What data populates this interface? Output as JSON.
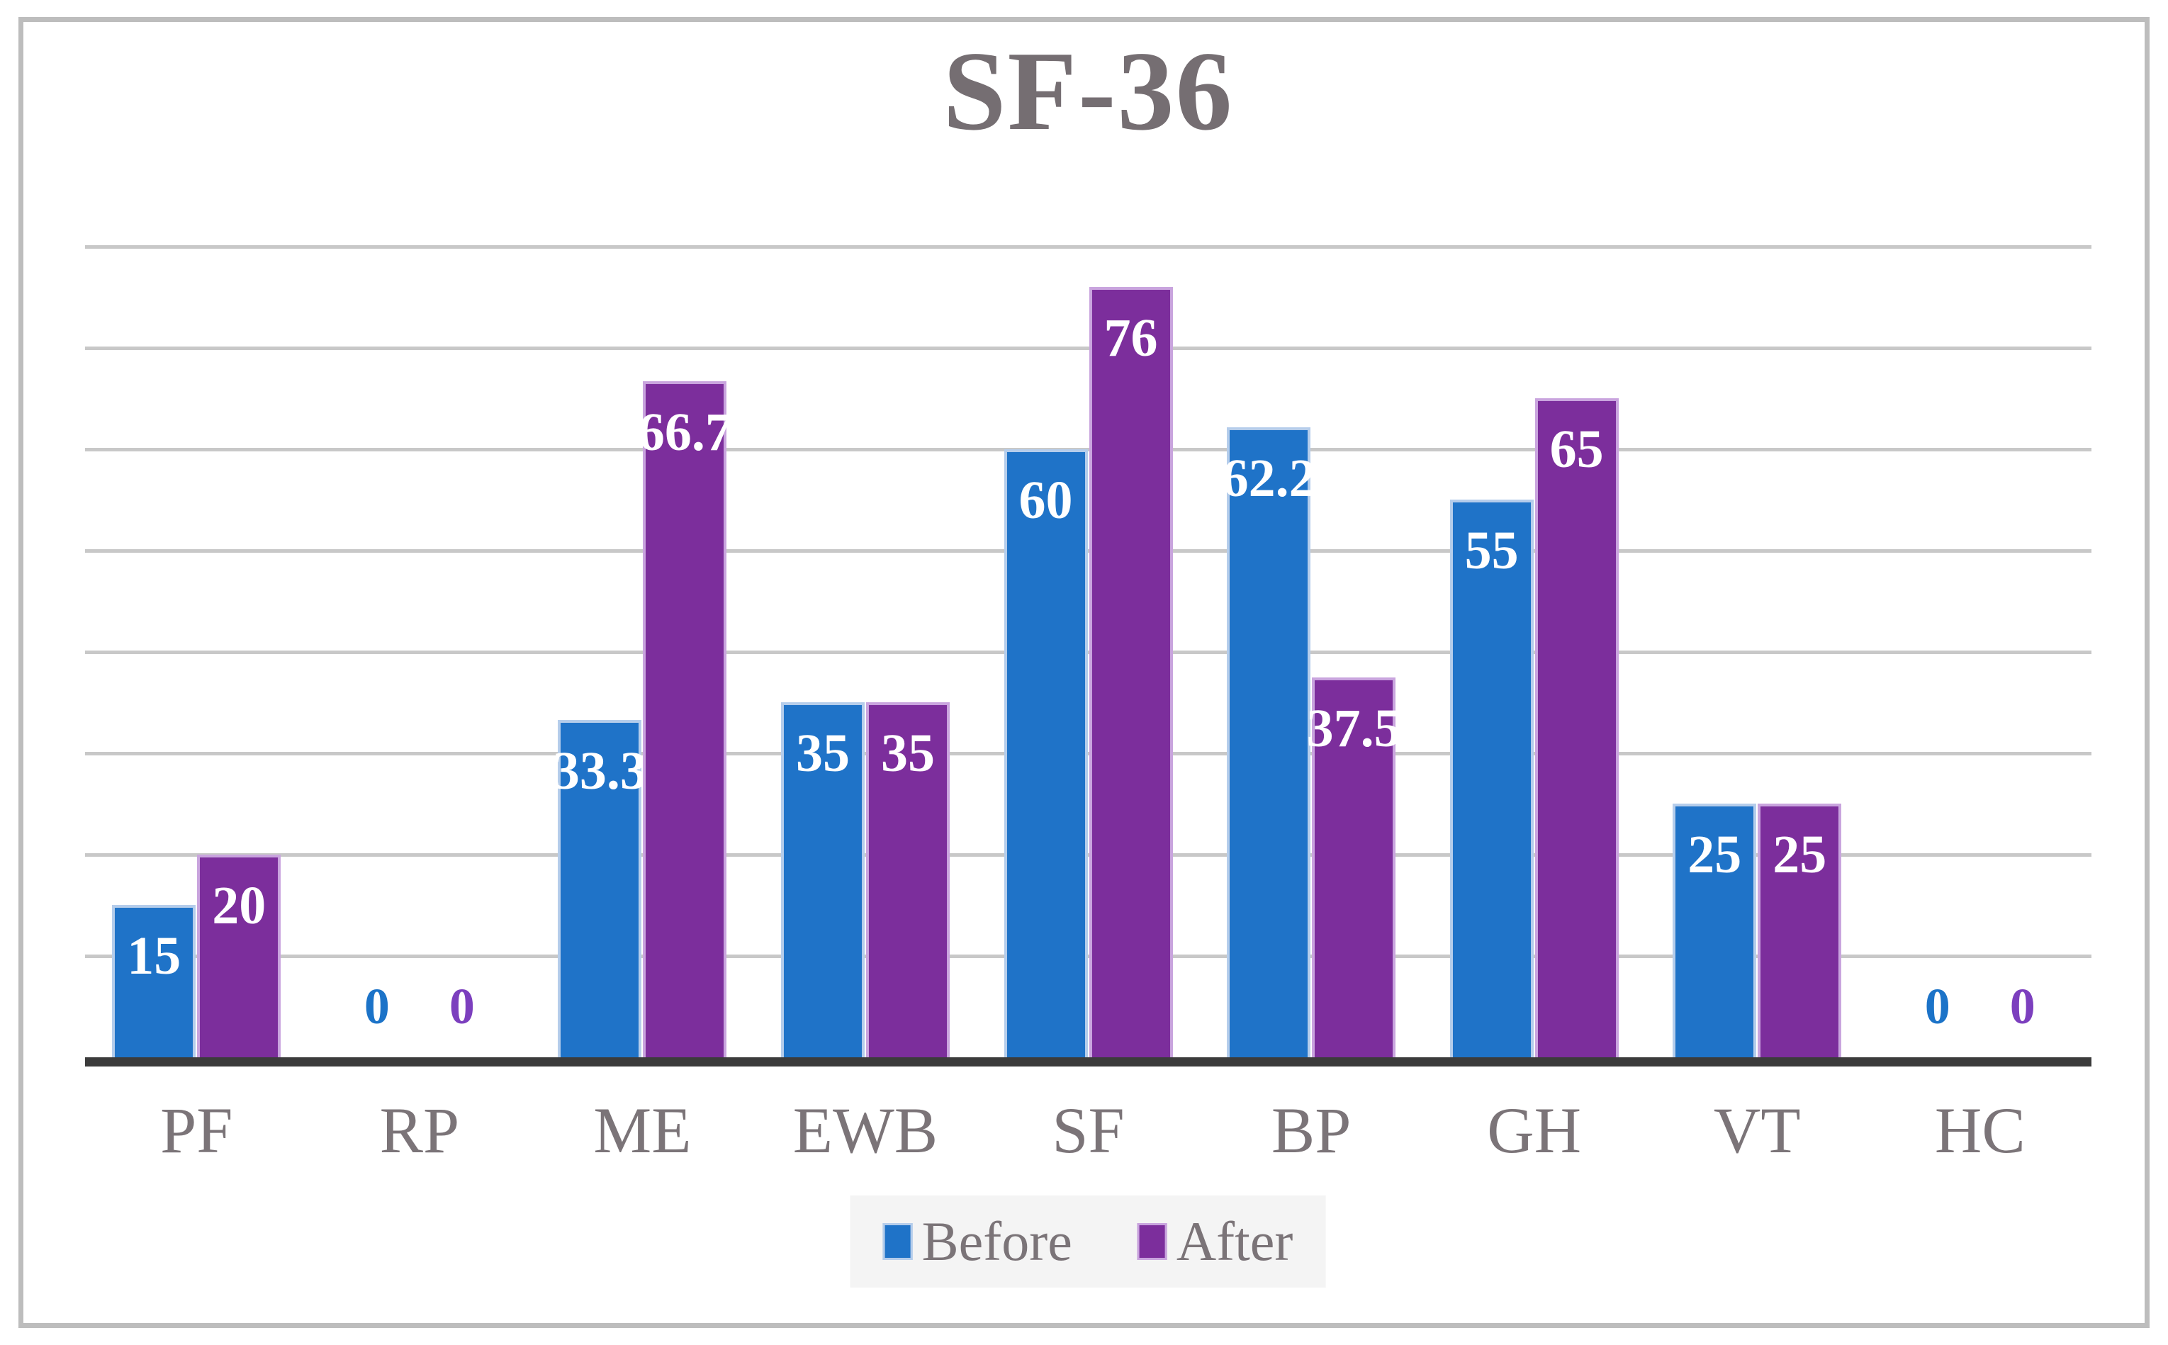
{
  "title": "SF-36",
  "chart_data": {
    "type": "bar",
    "title": "SF-36",
    "xlabel": "",
    "ylabel": "",
    "categories": [
      "PF",
      "RP",
      "ME",
      "EWB",
      "SF",
      "BP",
      "GH",
      "VT",
      "HC"
    ],
    "series": [
      {
        "name": "Before",
        "values": [
          15,
          0,
          33.3,
          35,
          60,
          62.2,
          55,
          25,
          0
        ],
        "labels": [
          "15",
          "0",
          "33.3",
          "35",
          "60",
          "62.2",
          "55",
          "25",
          "0"
        ],
        "color": "#1F73C8",
        "border_color": "#B5CDEB",
        "zero_label_color": "#1C73C8"
      },
      {
        "name": "After",
        "values": [
          20,
          0,
          66.7,
          35,
          76,
          37.5,
          65,
          25,
          0
        ],
        "labels": [
          "20",
          "0",
          "66.7",
          "35",
          "76",
          "37.5",
          "65",
          "25",
          "0"
        ],
        "color": "#7C2E9C",
        "border_color": "#C9A4DE",
        "zero_label_color": "#7C3FBE"
      }
    ],
    "ylim": [
      0,
      80
    ],
    "gridline_step": 10,
    "grid": true,
    "gridline_color": "#C8C8C8",
    "axis_line_color": "#3B3B3B",
    "value_labels_position": "inside-end",
    "value_label_color": "#FFFFFF",
    "legend_position": "bottom",
    "legend_background": "#F4F4F4",
    "text_color": "#7B7478",
    "title_color": "#756E72",
    "frame_border_color": "#BDBDBD"
  },
  "legend": {
    "items": [
      {
        "label": "Before"
      },
      {
        "label": "After"
      }
    ]
  }
}
